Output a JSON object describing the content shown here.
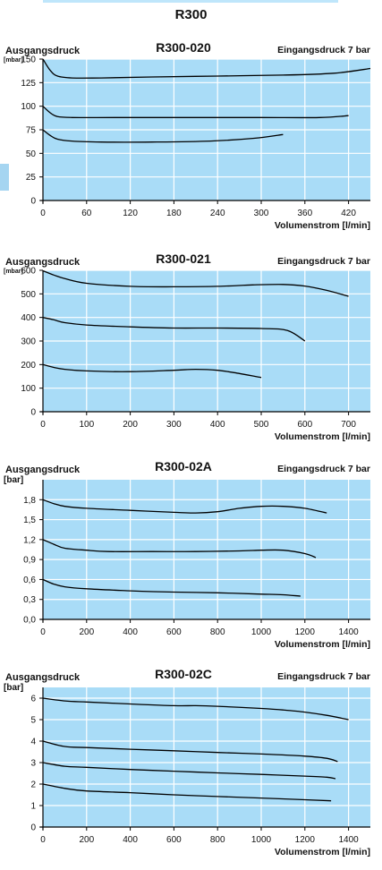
{
  "title": "R300",
  "colors": {
    "plot_background": "#a9dcf7",
    "grid": "#ffffff",
    "curve": "#000000",
    "accent_tab": "#a5d5f1"
  },
  "chart_data": [
    {
      "type": "line",
      "title": "R300-020",
      "ylabel": "Ausgangsdruck",
      "yunit": "[mbar]",
      "note": "Eingangsdruck 7 bar",
      "xlabel": "Volumenstrom [l/min]",
      "xlim": [
        0,
        450
      ],
      "ylim": [
        0,
        150
      ],
      "xticks": [
        0,
        60,
        120,
        180,
        240,
        300,
        360,
        420
      ],
      "yticks": [
        0,
        25,
        50,
        75,
        100,
        125,
        150
      ],
      "xtick_labels": [
        "0",
        "60",
        "120",
        "180",
        "240",
        "300",
        "360",
        "420"
      ],
      "ytick_labels": [
        "0",
        "25",
        "50",
        "75",
        "100",
        "125",
        "150"
      ],
      "grid": true,
      "series": [
        {
          "x": [
            0,
            10,
            20,
            40,
            80,
            150,
            240,
            330,
            400,
            450
          ],
          "y": [
            150,
            138,
            132,
            130,
            130,
            131,
            132,
            133,
            135,
            140
          ]
        },
        {
          "x": [
            0,
            10,
            20,
            40,
            100,
            200,
            300,
            380,
            420
          ],
          "y": [
            100,
            93,
            89,
            88,
            88,
            88,
            88,
            88,
            90
          ]
        },
        {
          "x": [
            0,
            10,
            20,
            40,
            80,
            150,
            230,
            290,
            330
          ],
          "y": [
            75,
            69,
            65,
            63,
            62,
            62,
            63,
            66,
            70
          ]
        }
      ]
    },
    {
      "type": "line",
      "title": "R300-021",
      "ylabel": "Ausgangsdruck",
      "yunit": "[mbar]",
      "note": "Eingangsdruck 7 bar",
      "xlabel": "Volumenstrom [l/min]",
      "xlim": [
        0,
        750
      ],
      "ylim": [
        0,
        600
      ],
      "xticks": [
        0,
        100,
        200,
        300,
        400,
        500,
        600,
        700
      ],
      "yticks": [
        0,
        100,
        200,
        300,
        400,
        500,
        600
      ],
      "xtick_labels": [
        "0",
        "100",
        "200",
        "300",
        "400",
        "500",
        "600",
        "700"
      ],
      "ytick_labels": [
        "0",
        "100",
        "200",
        "300",
        "400",
        "500",
        "600"
      ],
      "grid": true,
      "series": [
        {
          "x": [
            0,
            25,
            50,
            100,
            200,
            300,
            400,
            480,
            550,
            600,
            650,
            700
          ],
          "y": [
            598,
            580,
            565,
            545,
            532,
            530,
            532,
            538,
            540,
            533,
            515,
            490
          ]
        },
        {
          "x": [
            0,
            25,
            50,
            100,
            200,
            300,
            400,
            500,
            560,
            600
          ],
          "y": [
            400,
            390,
            378,
            368,
            360,
            355,
            355,
            353,
            345,
            300
          ]
        },
        {
          "x": [
            0,
            25,
            50,
            100,
            200,
            300,
            350,
            400,
            450,
            500
          ],
          "y": [
            200,
            188,
            180,
            173,
            170,
            176,
            180,
            176,
            162,
            145
          ]
        }
      ]
    },
    {
      "type": "line",
      "title": "R300-02A",
      "ylabel": "Ausgangsdruck",
      "yunit": "[bar]",
      "note": "Eingangsdruck 7 bar",
      "xlabel": "Volumenstrom [l/min]",
      "xlim": [
        0,
        1500
      ],
      "ylim": [
        0,
        2.1
      ],
      "xticks": [
        0,
        200,
        400,
        600,
        800,
        1000,
        1200,
        1400
      ],
      "yticks": [
        0,
        0.3,
        0.6,
        0.9,
        1.2,
        1.5,
        1.8
      ],
      "xtick_labels": [
        "0",
        "200",
        "400",
        "600",
        "800",
        "1000",
        "1200",
        "1400"
      ],
      "ytick_labels": [
        "0,0",
        "0,3",
        "0,6",
        "0,9",
        "1,2",
        "1,5",
        "1,8"
      ],
      "grid": true,
      "series": [
        {
          "x": [
            0,
            50,
            100,
            200,
            400,
            600,
            700,
            800,
            900,
            1000,
            1100,
            1200,
            1300
          ],
          "y": [
            1.8,
            1.74,
            1.7,
            1.67,
            1.64,
            1.61,
            1.6,
            1.62,
            1.67,
            1.7,
            1.7,
            1.67,
            1.6
          ]
        },
        {
          "x": [
            0,
            50,
            100,
            200,
            300,
            500,
            700,
            900,
            1000,
            1100,
            1200,
            1250
          ],
          "y": [
            1.2,
            1.13,
            1.07,
            1.04,
            1.02,
            1.02,
            1.02,
            1.03,
            1.04,
            1.04,
            0.99,
            0.93
          ]
        },
        {
          "x": [
            0,
            50,
            100,
            200,
            400,
            600,
            800,
            1000,
            1100,
            1180
          ],
          "y": [
            0.6,
            0.53,
            0.49,
            0.46,
            0.43,
            0.41,
            0.4,
            0.38,
            0.37,
            0.35
          ]
        }
      ]
    },
    {
      "type": "line",
      "title": "R300-02C",
      "ylabel": "Ausgangsdruck",
      "yunit": "[bar]",
      "note": "Eingangsdruck 7 bar",
      "xlabel": "Volumenstrom [l/min]",
      "xlim": [
        0,
        1500
      ],
      "ylim": [
        0,
        6.5
      ],
      "xticks": [
        0,
        200,
        400,
        600,
        800,
        1000,
        1200,
        1400
      ],
      "yticks": [
        0,
        1,
        2,
        3,
        4,
        5,
        6
      ],
      "xtick_labels": [
        "0",
        "200",
        "400",
        "600",
        "800",
        "1000",
        "1200",
        "1400"
      ],
      "ytick_labels": [
        "0",
        "1",
        "2",
        "3",
        "4",
        "5",
        "6"
      ],
      "grid": true,
      "series": [
        {
          "x": [
            0,
            100,
            200,
            400,
            600,
            700,
            800,
            1000,
            1100,
            1200,
            1300,
            1400
          ],
          "y": [
            6.0,
            5.87,
            5.82,
            5.73,
            5.65,
            5.65,
            5.62,
            5.52,
            5.45,
            5.35,
            5.2,
            5.0
          ]
        },
        {
          "x": [
            0,
            100,
            200,
            400,
            600,
            800,
            1000,
            1200,
            1300,
            1350
          ],
          "y": [
            4.0,
            3.75,
            3.7,
            3.62,
            3.55,
            3.47,
            3.4,
            3.3,
            3.2,
            3.05
          ]
        },
        {
          "x": [
            0,
            100,
            200,
            400,
            600,
            800,
            1000,
            1200,
            1300,
            1340
          ],
          "y": [
            3.0,
            2.83,
            2.78,
            2.68,
            2.6,
            2.52,
            2.45,
            2.37,
            2.32,
            2.25
          ]
        },
        {
          "x": [
            0,
            100,
            200,
            400,
            600,
            800,
            1000,
            1200,
            1320
          ],
          "y": [
            2.0,
            1.8,
            1.68,
            1.6,
            1.5,
            1.42,
            1.35,
            1.27,
            1.22
          ]
        }
      ]
    }
  ]
}
